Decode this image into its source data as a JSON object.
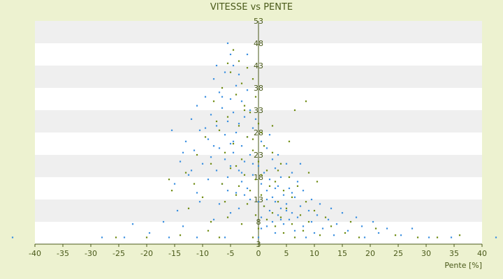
{
  "chart_data": {
    "type": "scatter",
    "title": "VITESSE vs PENTE",
    "xlabel": "Pente [%]",
    "ylabel": "",
    "xlim": [
      -40,
      40
    ],
    "ylim": [
      3,
      53
    ],
    "x_ticks": [
      "-40",
      "-35",
      "-30",
      "-25",
      "-20",
      "-15",
      "-10",
      "-5",
      "0",
      "5",
      "10",
      "15",
      "20",
      "25",
      "30",
      "35",
      "40"
    ],
    "y_ticks": [
      "3",
      "8",
      "13",
      "18",
      "23",
      "28",
      "33",
      "38",
      "43",
      "48",
      "53"
    ],
    "y_tick_values": [
      3,
      8,
      13,
      18,
      23,
      28,
      33,
      38,
      43,
      48,
      53
    ],
    "grid": "horizontal alternating bands",
    "series": [
      {
        "color": "#3a8fe0",
        "points": [
          [
            -5.5,
            48.0
          ],
          [
            -5.0,
            45.5
          ],
          [
            -4.5,
            43.0
          ],
          [
            -6.0,
            41.5
          ],
          [
            -3.5,
            41.0
          ],
          [
            -8.0,
            40.0
          ],
          [
            -4.0,
            38.5
          ],
          [
            -2.0,
            37.5
          ],
          [
            -7.0,
            37.0
          ],
          [
            -9.5,
            36.0
          ],
          [
            -5.0,
            35.5
          ],
          [
            -3.0,
            35.0
          ],
          [
            -11.0,
            34.0
          ],
          [
            -6.5,
            33.5
          ],
          [
            -1.5,
            33.0
          ],
          [
            -4.5,
            32.5
          ],
          [
            -8.5,
            32.0
          ],
          [
            -2.5,
            31.5
          ],
          [
            -12.0,
            31.0
          ],
          [
            -5.5,
            30.5
          ],
          [
            -3.5,
            30.0
          ],
          [
            -7.5,
            29.5
          ],
          [
            -1.0,
            29.0
          ],
          [
            -10.5,
            28.5
          ],
          [
            -4.0,
            28.0
          ],
          [
            -15.5,
            28.5
          ],
          [
            -6.0,
            27.5
          ],
          [
            -2.0,
            27.0
          ],
          [
            -9.0,
            26.5
          ],
          [
            0.5,
            26.0
          ],
          [
            -13.0,
            26.0
          ],
          [
            -5.0,
            25.5
          ],
          [
            -3.0,
            25.0
          ],
          [
            -7.0,
            24.5
          ],
          [
            1.5,
            24.5
          ],
          [
            -11.5,
            24.0
          ],
          [
            -4.5,
            23.5
          ],
          [
            -1.5,
            23.0
          ],
          [
            3.5,
            23.0
          ],
          [
            -8.5,
            22.5
          ],
          [
            -6.0,
            22.0
          ],
          [
            2.5,
            22.0
          ],
          [
            -14.0,
            21.5
          ],
          [
            -2.5,
            21.5
          ],
          [
            5.0,
            21.0
          ],
          [
            -10.0,
            21.0
          ],
          [
            -5.0,
            20.5
          ],
          [
            0.0,
            20.5
          ],
          [
            3.0,
            20.0
          ],
          [
            -3.5,
            19.5
          ],
          [
            -7.5,
            19.5
          ],
          [
            1.0,
            19.0
          ],
          [
            6.0,
            19.0
          ],
          [
            -12.5,
            18.5
          ],
          [
            -1.0,
            18.5
          ],
          [
            4.0,
            18.0
          ],
          [
            -5.5,
            18.0
          ],
          [
            2.0,
            17.5
          ],
          [
            -9.0,
            17.5
          ],
          [
            7.0,
            17.0
          ],
          [
            -3.0,
            17.0
          ],
          [
            0.5,
            16.5
          ],
          [
            -6.5,
            16.5
          ],
          [
            3.5,
            16.0
          ],
          [
            -15.0,
            16.5
          ],
          [
            5.5,
            15.5
          ],
          [
            -2.0,
            15.5
          ],
          [
            1.5,
            15.0
          ],
          [
            8.0,
            15.0
          ],
          [
            -4.0,
            14.5
          ],
          [
            -11.0,
            14.5
          ],
          [
            4.5,
            14.0
          ],
          [
            2.5,
            13.5
          ],
          [
            6.5,
            13.5
          ],
          [
            -1.5,
            13.0
          ],
          [
            9.5,
            13.0
          ],
          [
            0.0,
            12.5
          ],
          [
            3.0,
            12.5
          ],
          [
            -7.0,
            12.0
          ],
          [
            5.0,
            12.0
          ],
          [
            11.0,
            12.0
          ],
          [
            1.0,
            11.5
          ],
          [
            7.5,
            11.5
          ],
          [
            -3.5,
            11.0
          ],
          [
            4.0,
            11.0
          ],
          [
            13.0,
            11.0
          ],
          [
            2.0,
            10.5
          ],
          [
            9.0,
            10.5
          ],
          [
            6.0,
            10.0
          ],
          [
            -5.0,
            10.0
          ],
          [
            15.0,
            10.0
          ],
          [
            3.5,
            9.5
          ],
          [
            10.5,
            9.5
          ],
          [
            0.5,
            9.0
          ],
          [
            7.0,
            9.0
          ],
          [
            17.5,
            9.0
          ],
          [
            5.5,
            8.5
          ],
          [
            12.5,
            8.5
          ],
          [
            -8.0,
            8.5
          ],
          [
            2.5,
            8.0
          ],
          [
            9.5,
            8.0
          ],
          [
            20.5,
            8.0
          ],
          [
            4.5,
            7.5
          ],
          [
            14.0,
            7.5
          ],
          [
            -17.0,
            8.0
          ],
          [
            8.0,
            7.0
          ],
          [
            18.5,
            7.0
          ],
          [
            1.5,
            7.0
          ],
          [
            11.5,
            6.5
          ],
          [
            23.0,
            6.5
          ],
          [
            6.5,
            6.0
          ],
          [
            16.0,
            6.0
          ],
          [
            -13.5,
            7.0
          ],
          [
            27.5,
            6.5
          ],
          [
            10.0,
            5.5
          ],
          [
            21.5,
            5.5
          ],
          [
            3.0,
            5.5
          ],
          [
            -22.5,
            7.5
          ],
          [
            13.5,
            5.0
          ],
          [
            25.5,
            5.0
          ],
          [
            -19.5,
            5.5
          ],
          [
            30.5,
            4.5
          ],
          [
            -24.0,
            4.5
          ],
          [
            19.0,
            4.5
          ],
          [
            -16.0,
            4.5
          ],
          [
            34.5,
            4.5
          ],
          [
            -28.0,
            4.5
          ],
          [
            -44.0,
            4.5
          ],
          [
            42.5,
            4.5
          ],
          [
            -11.0,
            4.5
          ],
          [
            -6.0,
            4.5
          ],
          [
            0.0,
            4.5
          ],
          [
            8.5,
            4.5
          ],
          [
            -2.5,
            14.0
          ],
          [
            -4.5,
            26.0
          ],
          [
            -6.5,
            36.0
          ],
          [
            -8.0,
            25.0
          ],
          [
            -1.0,
            21.0
          ],
          [
            -3.0,
            19.0
          ],
          [
            1.5,
            13.0
          ],
          [
            3.0,
            15.5
          ],
          [
            5.0,
            10.5
          ],
          [
            -5.5,
            15.0
          ],
          [
            -9.5,
            29.0
          ],
          [
            -12.0,
            19.5
          ],
          [
            -13.5,
            23.5
          ],
          [
            -0.5,
            31.0
          ],
          [
            -7.5,
            43.0
          ],
          [
            -2.0,
            45.5
          ],
          [
            2.0,
            27.5
          ],
          [
            7.5,
            21.0
          ],
          [
            4.0,
            8.5
          ],
          [
            6.0,
            14.5
          ],
          [
            -10.5,
            12.5
          ],
          [
            -14.5,
            10.5
          ],
          [
            0.5,
            6.5
          ]
        ]
      },
      {
        "color": "#6e8a10",
        "points": [
          [
            -4.5,
            46.5
          ],
          [
            -3.5,
            44.0
          ],
          [
            -2.0,
            42.5
          ],
          [
            -5.0,
            41.5
          ],
          [
            -1.0,
            40.0
          ],
          [
            -3.0,
            39.0
          ],
          [
            -6.5,
            38.0
          ],
          [
            -0.5,
            36.0
          ],
          [
            -4.0,
            36.5
          ],
          [
            -2.5,
            34.0
          ],
          [
            -8.0,
            35.0
          ],
          [
            -1.5,
            32.5
          ],
          [
            -5.5,
            31.5
          ],
          [
            0.0,
            30.0
          ],
          [
            -3.5,
            29.5
          ],
          [
            -7.0,
            28.5
          ],
          [
            0.5,
            28.0
          ],
          [
            -2.0,
            27.0
          ],
          [
            -9.5,
            27.0
          ],
          [
            -4.5,
            25.5
          ],
          [
            1.0,
            25.0
          ],
          [
            -1.0,
            24.0
          ],
          [
            -6.0,
            23.5
          ],
          [
            2.5,
            23.5
          ],
          [
            -11.0,
            23.0
          ],
          [
            -3.0,
            22.0
          ],
          [
            0.0,
            21.5
          ],
          [
            -8.5,
            21.0
          ],
          [
            4.0,
            21.0
          ],
          [
            -5.0,
            20.0
          ],
          [
            1.5,
            19.5
          ],
          [
            -2.5,
            18.5
          ],
          [
            -13.0,
            19.0
          ],
          [
            5.5,
            18.0
          ],
          [
            -0.5,
            17.5
          ],
          [
            3.0,
            17.0
          ],
          [
            -6.5,
            16.5
          ],
          [
            -16.0,
            17.5
          ],
          [
            2.0,
            16.0
          ],
          [
            7.0,
            16.0
          ],
          [
            -1.5,
            15.0
          ],
          [
            4.5,
            15.0
          ],
          [
            -4.0,
            14.0
          ],
          [
            0.5,
            14.0
          ],
          [
            6.0,
            13.5
          ],
          [
            -10.0,
            13.5
          ],
          [
            3.5,
            12.5
          ],
          [
            8.5,
            12.5
          ],
          [
            -2.0,
            12.0
          ],
          [
            1.0,
            11.5
          ],
          [
            5.0,
            11.0
          ],
          [
            -12.5,
            11.0
          ],
          [
            10.0,
            10.5
          ],
          [
            2.5,
            10.0
          ],
          [
            -0.5,
            9.5
          ],
          [
            7.5,
            9.5
          ],
          [
            4.0,
            9.0
          ],
          [
            12.0,
            9.0
          ],
          [
            -5.5,
            9.0
          ],
          [
            1.5,
            8.5
          ],
          [
            9.0,
            8.0
          ],
          [
            16.5,
            8.0
          ],
          [
            6.0,
            7.5
          ],
          [
            -3.0,
            7.5
          ],
          [
            3.0,
            7.0
          ],
          [
            13.0,
            7.0
          ],
          [
            21.0,
            6.5
          ],
          [
            0.0,
            6.5
          ],
          [
            8.0,
            6.0
          ],
          [
            -9.0,
            6.0
          ],
          [
            15.5,
            5.5
          ],
          [
            4.5,
            5.5
          ],
          [
            24.5,
            5.0
          ],
          [
            11.0,
            5.0
          ],
          [
            -14.0,
            5.0
          ],
          [
            28.5,
            4.5
          ],
          [
            -25.5,
            4.5
          ],
          [
            36.0,
            5.0
          ],
          [
            -20.0,
            4.5
          ],
          [
            18.0,
            4.5
          ],
          [
            32.0,
            4.5
          ],
          [
            -7.0,
            4.5
          ],
          [
            -1.0,
            4.5
          ],
          [
            6.5,
            4.5
          ],
          [
            -2.5,
            33.0
          ],
          [
            -5.5,
            43.5
          ],
          [
            -4.0,
            20.5
          ],
          [
            2.5,
            29.5
          ],
          [
            -3.5,
            16.0
          ],
          [
            -7.5,
            30.5
          ],
          [
            -1.0,
            26.5
          ],
          [
            0.5,
            18.5
          ],
          [
            -6.0,
            12.5
          ],
          [
            3.5,
            19.5
          ],
          [
            6.5,
            33.0
          ],
          [
            8.5,
            35.0
          ],
          [
            5.5,
            26.0
          ],
          [
            9.0,
            19.0
          ],
          [
            10.5,
            17.0
          ],
          [
            -15.5,
            15.0
          ],
          [
            -11.5,
            16.5
          ],
          [
            -8.5,
            8.0
          ]
        ]
      }
    ]
  }
}
